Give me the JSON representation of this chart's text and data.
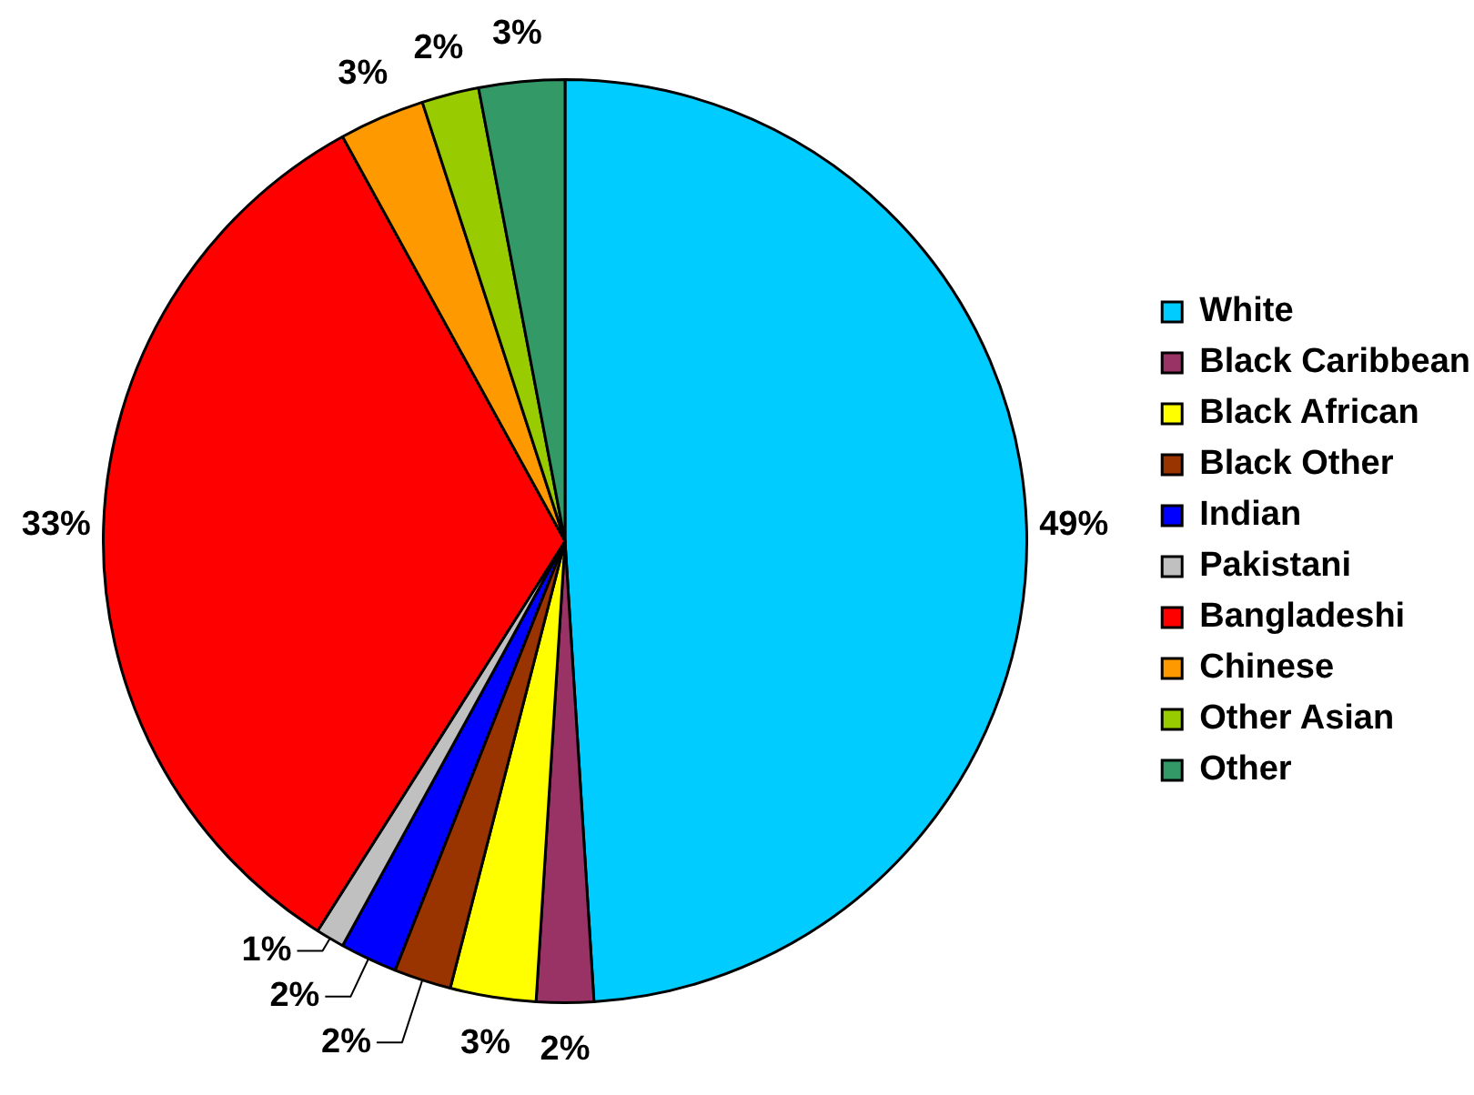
{
  "chart_data": {
    "type": "pie",
    "categories": [
      "White",
      "Black Caribbean",
      "Black African",
      "Black Other",
      "Indian",
      "Pakistani",
      "Bangladeshi",
      "Chinese",
      "Other Asian",
      "Other"
    ],
    "values": [
      49,
      2,
      3,
      2,
      2,
      1,
      33,
      3,
      2,
      3
    ],
    "colors": [
      "#00ccff",
      "#993366",
      "#ffff00",
      "#993300",
      "#0000ff",
      "#c0c0c0",
      "#ff0000",
      "#ff9900",
      "#99cc00",
      "#339966"
    ],
    "value_labels": [
      "49%",
      "2%",
      "3%",
      "2%",
      "2%",
      "1%",
      "33%",
      "3%",
      "2%",
      "3%"
    ],
    "legend": "right"
  }
}
